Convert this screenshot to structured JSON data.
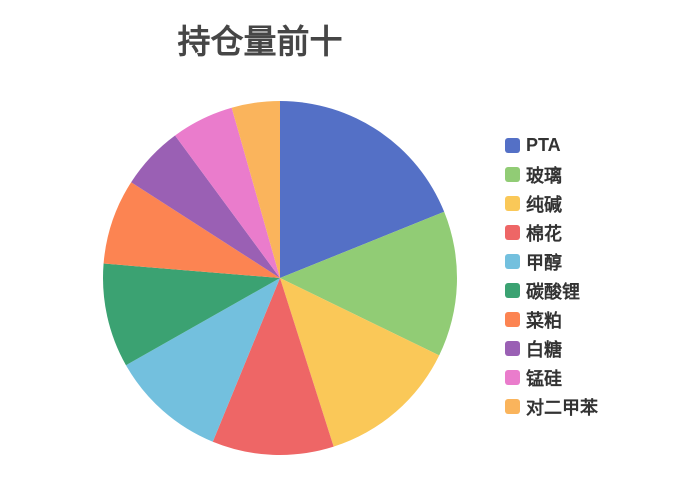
{
  "title": "持仓量前十",
  "colors": {
    "title_text": "#464646",
    "legend_text": "#333333",
    "background": "#ffffff"
  },
  "chart_data": {
    "type": "pie",
    "title": "持仓量前十",
    "legend_position": "right",
    "start_angle": "top",
    "direction": "clockwise",
    "value_unit": "percent-of-circle (estimated from slice angles, no numeric labels shown)",
    "series": [
      {
        "name": "PTA",
        "value": 18.9,
        "color": "#5470C6"
      },
      {
        "name": "玻璃",
        "value": 13.3,
        "color": "#91CC75"
      },
      {
        "name": "纯碱",
        "value": 12.9,
        "color": "#FAC858"
      },
      {
        "name": "棉花",
        "value": 11.1,
        "color": "#EE6666"
      },
      {
        "name": "甲醇",
        "value": 10.6,
        "color": "#73C0DE"
      },
      {
        "name": "碳酸锂",
        "value": 9.5,
        "color": "#3BA272"
      },
      {
        "name": "菜粕",
        "value": 7.8,
        "color": "#FC8452"
      },
      {
        "name": "白糖",
        "value": 5.8,
        "color": "#9A60B4"
      },
      {
        "name": "锰硅",
        "value": 5.7,
        "color": "#EA7CCC"
      },
      {
        "name": "对二甲苯",
        "value": 4.4,
        "color": "#FAB45C"
      }
    ]
  }
}
